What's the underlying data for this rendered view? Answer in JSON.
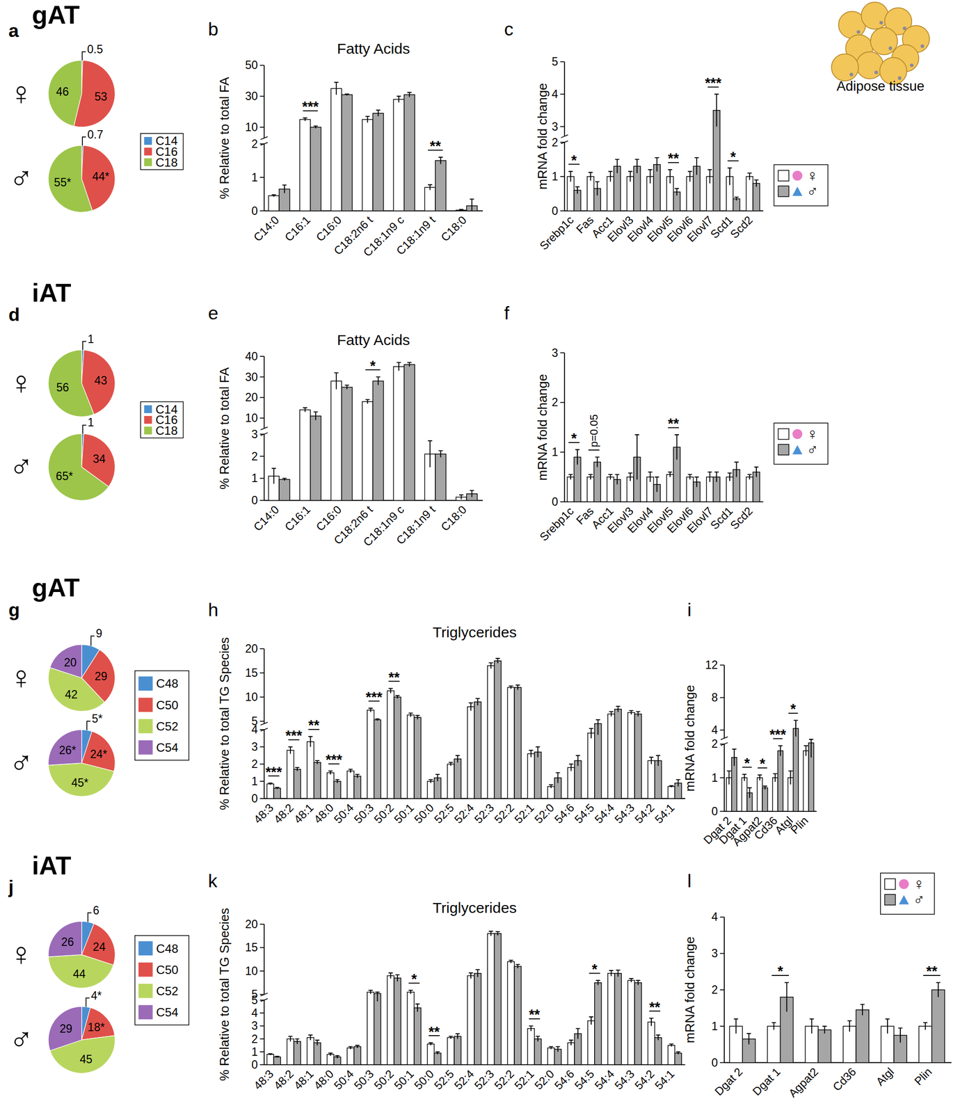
{
  "figure": {
    "caption": "Adipose tissue"
  },
  "chart_data": [
    {
      "type": "pie",
      "panel_label": "a",
      "tissue_label": "gAT",
      "categories": [
        "C14",
        "C16",
        "C18"
      ],
      "colors": [
        "#4a8fd0",
        "#e0504a",
        "#9cc54a"
      ],
      "data_labels": true,
      "legend": "right",
      "series": [
        {
          "name": "♀",
          "values": [
            0.5,
            53,
            46
          ]
        },
        {
          "name": "♂",
          "values": [
            0.7,
            44,
            55
          ],
          "value_labels": [
            "0.7",
            "44*",
            "55*"
          ]
        }
      ]
    },
    {
      "type": "bar",
      "panel_label": "b",
      "title": "Fatty Acids",
      "ylabel": "% Relative to total FA",
      "categories": [
        "C14:0",
        "C16:1",
        "C16:0",
        "C18:2n6 t",
        "C18:1n9 c",
        "C18:1n9 t",
        "C18:0"
      ],
      "ylim": [
        0,
        50
      ],
      "yticks": [
        0,
        1,
        2,
        10,
        30,
        50
      ],
      "axis_break": [
        2,
        3
      ],
      "series": [
        {
          "color": "#ffffff",
          "values": [
            0.45,
            15,
            35,
            15,
            28,
            0.7,
            0.02
          ],
          "errors": [
            0.03,
            1,
            4,
            2,
            2,
            0.08,
            0.02
          ]
        },
        {
          "color": "#a6a6a6",
          "values": [
            0.65,
            10,
            31,
            19,
            31,
            1.5,
            0.15
          ],
          "errors": [
            0.12,
            0.8,
            0.5,
            2,
            1.5,
            0.1,
            0.2
          ]
        }
      ],
      "significance": [
        {
          "category": "C16:1",
          "text": "***"
        },
        {
          "category": "C18:1n9 t",
          "text": "**"
        }
      ]
    },
    {
      "type": "bar",
      "panel_label": "c",
      "ylabel": "mRNA fold change",
      "legend": "right",
      "categories": [
        "Srebp1c",
        "Fas",
        "Acc1",
        "Elovl3",
        "Elovl4",
        "Elovl5",
        "Elovl6",
        "Elovl7",
        "Scd1",
        "Scd2"
      ],
      "ylim": [
        0,
        5
      ],
      "yticks": [
        0,
        1,
        2,
        3,
        4,
        5
      ],
      "axis_break": [
        2,
        2.7
      ],
      "series": [
        {
          "name": "♀",
          "color": "#ffffff",
          "marker": "circle",
          "values": [
            1,
            1,
            1,
            1,
            1,
            1,
            1,
            1,
            1,
            1
          ],
          "errors": [
            0.15,
            0.12,
            0.15,
            0.15,
            0.2,
            0.2,
            0.15,
            0.2,
            0.25,
            0.1
          ]
        },
        {
          "name": "♂",
          "color": "#a6a6a6",
          "marker": "triangle",
          "values": [
            0.6,
            0.65,
            1.3,
            1.3,
            1.35,
            0.55,
            1.3,
            3.5,
            0.35,
            0.8
          ],
          "errors": [
            0.1,
            0.2,
            0.2,
            0.2,
            0.2,
            0.1,
            0.25,
            0.5,
            0.05,
            0.1
          ]
        }
      ],
      "significance": [
        {
          "category": "Srebp1c",
          "text": "*"
        },
        {
          "category": "Elovl5",
          "text": "**"
        },
        {
          "category": "Elovl7",
          "text": "***"
        },
        {
          "category": "Scd1",
          "text": "*"
        }
      ]
    },
    {
      "type": "pie",
      "panel_label": "d",
      "tissue_label": "iAT",
      "categories": [
        "C14",
        "C16",
        "C18"
      ],
      "colors": [
        "#4a8fd0",
        "#e0504a",
        "#9cc54a"
      ],
      "data_labels": true,
      "legend": "right",
      "series": [
        {
          "name": "♀",
          "values": [
            1,
            43,
            56
          ]
        },
        {
          "name": "♂",
          "values": [
            1,
            34,
            65
          ],
          "value_labels": [
            "1",
            "34",
            "65*"
          ]
        }
      ]
    },
    {
      "type": "bar",
      "panel_label": "e",
      "title": "Fatty Acids",
      "ylabel": "% Relative to total FA",
      "categories": [
        "C14:0",
        "C16:1",
        "C16:0",
        "C18:2n6 t",
        "C18:1n9 c",
        "C18:1n9 t",
        "C18:0"
      ],
      "ylim": [
        0,
        40
      ],
      "yticks": [
        0,
        1,
        2,
        3,
        10,
        20,
        30,
        40
      ],
      "axis_break": [
        3,
        5
      ],
      "series": [
        {
          "color": "#ffffff",
          "values": [
            1.1,
            14,
            28,
            18,
            35,
            2.1,
            0.15
          ],
          "errors": [
            0.35,
            1,
            4,
            1,
            2,
            0.6,
            0.1
          ]
        },
        {
          "color": "#a6a6a6",
          "values": [
            0.95,
            11,
            25,
            28,
            36,
            2.1,
            0.3
          ],
          "errors": [
            0.05,
            2,
            1,
            2,
            1,
            0.15,
            0.15
          ]
        }
      ],
      "significance": [
        {
          "category": "C18:2n6 t",
          "text": "*"
        }
      ]
    },
    {
      "type": "bar",
      "panel_label": "f",
      "ylabel": "mRNA fold change",
      "legend": "right",
      "categories": [
        "Srebp1c",
        "Fas",
        "Acc1",
        "Elovl3",
        "Elovl4",
        "Elovl5",
        "Elovl6",
        "Elovl7",
        "Scd1",
        "Scd2"
      ],
      "ylim": [
        0,
        3
      ],
      "yticks": [
        0,
        1,
        2,
        3
      ],
      "series": [
        {
          "name": "♀",
          "color": "#ffffff",
          "marker": "circle",
          "values": [
            0.5,
            0.5,
            0.5,
            0.5,
            0.5,
            0.55,
            0.5,
            0.5,
            0.5,
            0.5
          ],
          "errors": [
            0.05,
            0.05,
            0.05,
            0.08,
            0.1,
            0.05,
            0.05,
            0.1,
            0.08,
            0.05
          ]
        },
        {
          "name": "♂",
          "color": "#a6a6a6",
          "marker": "triangle",
          "values": [
            0.9,
            0.8,
            0.45,
            0.9,
            0.35,
            1.1,
            0.4,
            0.5,
            0.65,
            0.6
          ],
          "errors": [
            0.15,
            0.1,
            0.1,
            0.45,
            0.15,
            0.25,
            0.1,
            0.1,
            0.15,
            0.1
          ]
        }
      ],
      "significance": [
        {
          "category": "Srebp1c",
          "text": "*"
        },
        {
          "category": "Fas",
          "text": "p=0.05"
        },
        {
          "category": "Elovl5",
          "text": "**"
        }
      ]
    },
    {
      "type": "pie",
      "panel_label": "g",
      "tissue_label": "gAT",
      "categories": [
        "C48",
        "C50",
        "C52",
        "C54"
      ],
      "colors": [
        "#4a8fd0",
        "#e0504a",
        "#b8d65e",
        "#9b6bb8"
      ],
      "data_labels": true,
      "legend": "right",
      "series": [
        {
          "name": "♀",
          "values": [
            9,
            29,
            42,
            20
          ]
        },
        {
          "name": "♂",
          "values": [
            5,
            24,
            45,
            26
          ],
          "value_labels": [
            "5*",
            "24*",
            "45*",
            "26*"
          ]
        }
      ]
    },
    {
      "type": "bar",
      "panel_label": "h",
      "title": "Triglycerides",
      "ylabel": "% Relative to total TG Species",
      "categories": [
        "48:3",
        "48:2",
        "48:1",
        "48:0",
        "50:4",
        "50:3",
        "50:2",
        "50:1",
        "50:0",
        "52:5",
        "52:4",
        "52:3",
        "52:2",
        "52:1",
        "52:0",
        "54:6",
        "54:5",
        "54:4",
        "54:3",
        "54:2",
        "54:1"
      ],
      "ylim": [
        0,
        20
      ],
      "yticks": [
        0,
        1,
        2,
        3,
        4,
        5,
        10,
        15,
        20
      ],
      "axis_break": [
        4,
        4.5
      ],
      "series": [
        {
          "color": "#ffffff",
          "values": [
            0.85,
            2.8,
            3.3,
            1.5,
            1.6,
            7.3,
            11.3,
            6.3,
            1.0,
            2.0,
            8,
            16.5,
            12,
            2.6,
            0.7,
            1.8,
            3.8,
            6.5,
            6.8,
            2.2,
            0.7
          ],
          "errors": [
            0.05,
            0.2,
            0.3,
            0.1,
            0.1,
            0.4,
            0.5,
            0.4,
            0.1,
            0.1,
            0.8,
            0.6,
            0.3,
            0.2,
            0.1,
            0.2,
            0.3,
            0.5,
            0.4,
            0.2,
            0.05
          ]
        },
        {
          "color": "#a6a6a6",
          "values": [
            0.6,
            1.7,
            2.1,
            1.0,
            1.3,
            5.3,
            10,
            5.8,
            1.2,
            2.3,
            9,
            17.5,
            12,
            2.7,
            1.2,
            2.2,
            4.5,
            7.5,
            6.5,
            2.2,
            0.9
          ],
          "errors": [
            0.05,
            0.1,
            0.1,
            0.1,
            0.1,
            0.2,
            0.3,
            0.4,
            0.2,
            0.2,
            0.7,
            0.5,
            0.5,
            0.3,
            0.3,
            0.3,
            0.8,
            0.6,
            0.5,
            0.3,
            0.2
          ]
        }
      ],
      "significance": [
        {
          "category": "48:3",
          "text": "***"
        },
        {
          "category": "48:2",
          "text": "***"
        },
        {
          "category": "48:1",
          "text": "**"
        },
        {
          "category": "48:0",
          "text": "***"
        },
        {
          "category": "50:3",
          "text": "***"
        },
        {
          "category": "50:2",
          "text": "**"
        }
      ]
    },
    {
      "type": "bar",
      "panel_label": "i",
      "ylabel": "mRNA fold change",
      "categories": [
        "Dgat 2",
        "Dgat 1",
        "Agpat2",
        "Cd36",
        "Atgl",
        "Plin"
      ],
      "ylim": [
        0,
        12
      ],
      "yticks": [
        0,
        1,
        2,
        4,
        8,
        12
      ],
      "axis_break": [
        2,
        3
      ],
      "series": [
        {
          "color": "#ffffff",
          "values": [
            1,
            1,
            1,
            1,
            1,
            1.8
          ],
          "errors": [
            0.2,
            0.1,
            0.08,
            0.12,
            0.2,
            0.15
          ]
        },
        {
          "color": "#a6a6a6",
          "values": [
            1.6,
            0.55,
            0.7,
            1.8,
            4.2,
            2.2
          ],
          "errors": [
            0.25,
            0.15,
            0.05,
            0.15,
            1.0,
            0.6
          ]
        }
      ],
      "significance": [
        {
          "category": "Dgat 1",
          "text": "*"
        },
        {
          "category": "Agpat2",
          "text": "*"
        },
        {
          "category": "Cd36",
          "text": "***"
        },
        {
          "category": "Atgl",
          "text": "*"
        }
      ]
    },
    {
      "type": "pie",
      "panel_label": "j",
      "tissue_label": "iAT",
      "categories": [
        "C48",
        "C50",
        "C52",
        "C54"
      ],
      "colors": [
        "#4a8fd0",
        "#e0504a",
        "#b8d65e",
        "#9b6bb8"
      ],
      "data_labels": true,
      "legend": "right",
      "series": [
        {
          "name": "♀",
          "values": [
            6,
            24,
            44,
            26
          ]
        },
        {
          "name": "♂",
          "values": [
            4,
            18,
            45,
            29
          ],
          "value_labels": [
            "4*",
            "18*",
            "45",
            "29"
          ]
        }
      ]
    },
    {
      "type": "bar",
      "panel_label": "k",
      "title": "Triglycerides",
      "ylabel": "% Relative to total TG Species",
      "categories": [
        "48:3",
        "48:2",
        "48:1",
        "48:0",
        "50:4",
        "50:3",
        "50:2",
        "50:1",
        "50:0",
        "52:5",
        "52:4",
        "52:3",
        "52:2",
        "52:1",
        "52:0",
        "54:6",
        "54:5",
        "54:4",
        "54:3",
        "54:2",
        "54:1"
      ],
      "ylim": [
        0,
        20
      ],
      "yticks": [
        0,
        1,
        2,
        3,
        4,
        5,
        5,
        10,
        15,
        20
      ],
      "axis_break": [
        5,
        5
      ],
      "series": [
        {
          "color": "#ffffff",
          "values": [
            0.8,
            2.0,
            2.1,
            0.8,
            1.3,
            5.5,
            9,
            5.5,
            1.6,
            2.1,
            9,
            18,
            12,
            2.8,
            1.3,
            1.7,
            3.4,
            9.5,
            8,
            3.3,
            1.5
          ],
          "errors": [
            0.05,
            0.2,
            0.2,
            0.1,
            0.1,
            0.4,
            0.6,
            0.4,
            0.1,
            0.1,
            0.6,
            0.5,
            0.3,
            0.2,
            0.1,
            0.2,
            0.3,
            0.6,
            0.4,
            0.3,
            0.1
          ]
        },
        {
          "color": "#a6a6a6",
          "values": [
            0.6,
            1.8,
            1.7,
            0.6,
            1.4,
            5.2,
            8.5,
            4.4,
            0.9,
            2.2,
            9.5,
            18,
            11,
            2.0,
            1.2,
            2.4,
            7.5,
            9.5,
            7.5,
            2.1,
            0.9
          ],
          "errors": [
            0.05,
            0.2,
            0.2,
            0.1,
            0.1,
            0.3,
            0.7,
            0.3,
            0.1,
            0.2,
            0.8,
            0.4,
            0.4,
            0.2,
            0.2,
            0.4,
            0.5,
            0.7,
            0.5,
            0.2,
            0.1
          ]
        }
      ],
      "significance": [
        {
          "category": "50:1",
          "text": "*"
        },
        {
          "category": "50:0",
          "text": "**"
        },
        {
          "category": "52:1",
          "text": "**"
        },
        {
          "category": "54:5",
          "text": "*"
        },
        {
          "category": "54:2",
          "text": "**"
        }
      ]
    },
    {
      "type": "bar",
      "panel_label": "l",
      "ylabel": "mRNA fold change",
      "legend": "top-right",
      "categories": [
        "Dgat 2",
        "Dgat 1",
        "Agpat2",
        "Cd36",
        "Atgl",
        "Plin"
      ],
      "ylim": [
        0,
        4
      ],
      "yticks": [
        0,
        1,
        2,
        3,
        4
      ],
      "series": [
        {
          "name": "♀",
          "color": "#ffffff",
          "marker": "circle",
          "values": [
            1,
            1,
            1,
            1,
            1,
            1
          ],
          "errors": [
            0.2,
            0.1,
            0.2,
            0.15,
            0.2,
            0.1
          ]
        },
        {
          "name": "♂",
          "color": "#a6a6a6",
          "marker": "triangle",
          "values": [
            0.65,
            1.8,
            0.9,
            1.45,
            0.75,
            2.0
          ],
          "errors": [
            0.15,
            0.4,
            0.1,
            0.15,
            0.2,
            0.2
          ]
        }
      ],
      "significance": [
        {
          "category": "Dgat 1",
          "text": "*"
        },
        {
          "category": "Plin",
          "text": "**"
        }
      ]
    }
  ]
}
